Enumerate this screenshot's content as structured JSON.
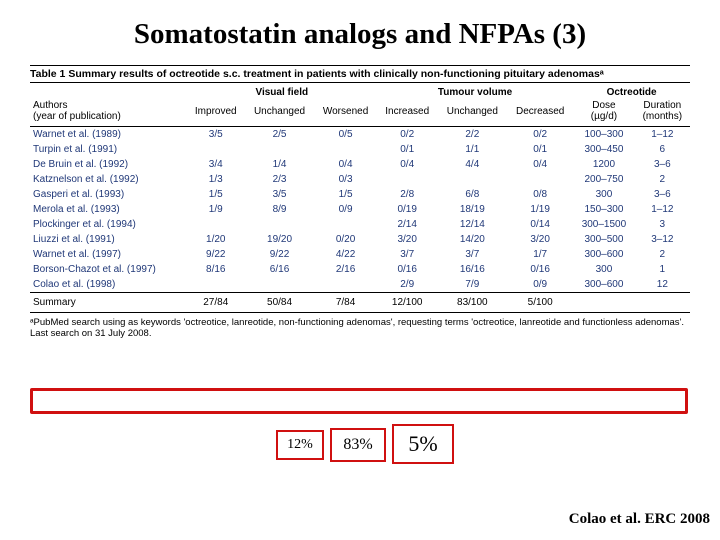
{
  "title": "Somatostatin analogs and NFPAs (3)",
  "table_caption": "Table 1 Summary results of octreotide s.c. treatment in patients with clinically non-functioning pituitary adenomasᵃ",
  "group_headers": {
    "blank": "",
    "visual_field": "Visual field",
    "tumour_volume": "Tumour volume",
    "octreotide": "Octreotide"
  },
  "sub_headers": {
    "authors": "Authors\n(year of publication)",
    "improved": "Improved",
    "unch_vf": "Unchanged",
    "worsened": "Worsened",
    "increased": "Increased",
    "unch_tv": "Unchanged",
    "decreased": "Decreased",
    "dose": "Dose\n(µg/d)",
    "duration": "Duration\n(months)"
  },
  "rows": [
    {
      "a": "Warnet et al. (1989)",
      "i": "3/5",
      "u1": "2/5",
      "w": "0/5",
      "in": "0/2",
      "u2": "2/2",
      "d": "0/2",
      "ds": "100–300",
      "du": "1–12"
    },
    {
      "a": "Turpin et al. (1991)",
      "i": "",
      "u1": "",
      "w": "",
      "in": "0/1",
      "u2": "1/1",
      "d": "0/1",
      "ds": "300–450",
      "du": "6"
    },
    {
      "a": "De Bruin et al. (1992)",
      "i": "3/4",
      "u1": "1/4",
      "w": "0/4",
      "in": "0/4",
      "u2": "4/4",
      "d": "0/4",
      "ds": "1200",
      "du": "3–6"
    },
    {
      "a": "Katznelson et al. (1992)",
      "i": "1/3",
      "u1": "2/3",
      "w": "0/3",
      "in": "",
      "u2": "",
      "d": "",
      "ds": "200–750",
      "du": "2"
    },
    {
      "a": "Gasperi et al. (1993)",
      "i": "1/5",
      "u1": "3/5",
      "w": "1/5",
      "in": "2/8",
      "u2": "6/8",
      "d": "0/8",
      "ds": "300",
      "du": "3–6"
    },
    {
      "a": "Merola et al. (1993)",
      "i": "1/9",
      "u1": "8/9",
      "w": "0/9",
      "in": "0/19",
      "u2": "18/19",
      "d": "1/19",
      "ds": "150–300",
      "du": "1–12"
    },
    {
      "a": "Plockinger et al. (1994)",
      "i": "",
      "u1": "",
      "w": "",
      "in": "2/14",
      "u2": "12/14",
      "d": "0/14",
      "ds": "300–1500",
      "du": "3"
    },
    {
      "a": "Liuzzi et al. (1991)",
      "i": "1/20",
      "u1": "19/20",
      "w": "0/20",
      "in": "3/20",
      "u2": "14/20",
      "d": "3/20",
      "ds": "300–500",
      "du": "3–12"
    },
    {
      "a": "Warnet et al. (1997)",
      "i": "9/22",
      "u1": "9/22",
      "w": "4/22",
      "in": "3/7",
      "u2": "3/7",
      "d": "1/7",
      "ds": "300–600",
      "du": "2"
    },
    {
      "a": "Borson-Chazot et al. (1997)",
      "i": "8/16",
      "u1": "6/16",
      "w": "2/16",
      "in": "0/16",
      "u2": "16/16",
      "d": "0/16",
      "ds": "300",
      "du": "1"
    },
    {
      "a": "Colao et al. (1998)",
      "i": "",
      "u1": "",
      "w": "",
      "in": "2/9",
      "u2": "7/9",
      "d": "0/9",
      "ds": "300–600",
      "du": "12"
    }
  ],
  "summary_row": {
    "a": "Summary",
    "i": "27/84",
    "u1": "50/84",
    "w": "7/84",
    "in": "12/100",
    "u2": "83/100",
    "d": "5/100",
    "ds": "",
    "du": ""
  },
  "footnote": "ᵃPubMed search using as keywords 'octreotice, lanreotide, non-functioning adenomas', requesting terms 'octreotice, lanreotide and functionless adenomas'. Last search on 31 July 2008.",
  "percent_labels": {
    "p1": "12%",
    "p2": "83%",
    "p3": "5%"
  },
  "citation": "Colao et al. ERC 2008",
  "colors": {
    "highlight": "#d01010",
    "data_text": "#203878"
  }
}
